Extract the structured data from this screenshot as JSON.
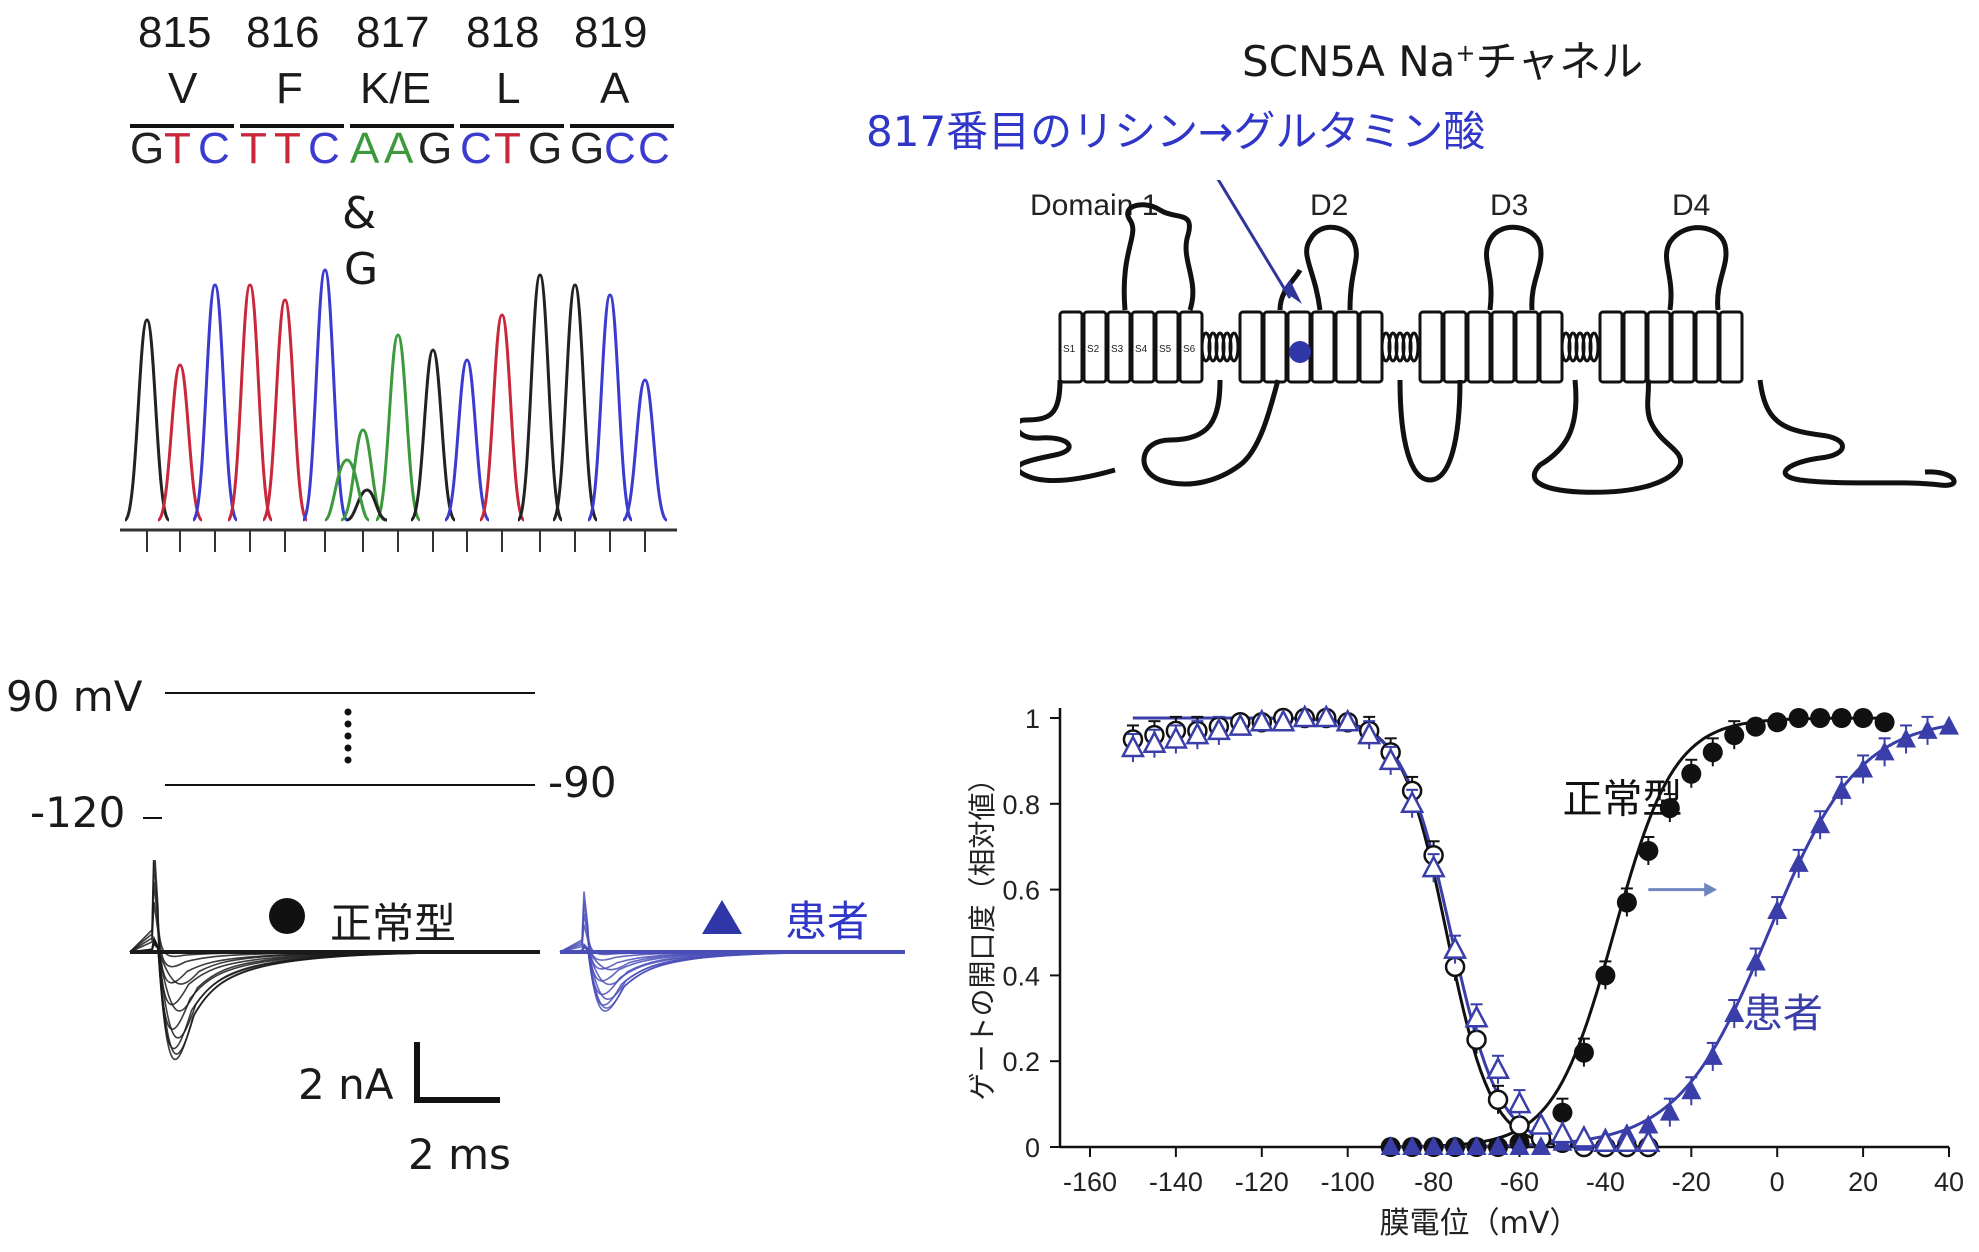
{
  "seq": {
    "positions": [
      "815",
      "816",
      "817",
      "818",
      "819"
    ],
    "amino_acids": [
      "V",
      "F",
      "K/E",
      "L",
      "A"
    ],
    "codons": [
      [
        {
          "b": "G",
          "c": "#222"
        },
        {
          "b": "T",
          "c": "#c8283a"
        },
        {
          "b": "C",
          "c": "#3b3bd0"
        }
      ],
      [
        {
          "b": "T",
          "c": "#c8283a"
        },
        {
          "b": "T",
          "c": "#c8283a"
        },
        {
          "b": "C",
          "c": "#3b3bd0"
        }
      ],
      [
        {
          "b": "A",
          "c": "#3c9a3c"
        },
        {
          "b": "A",
          "c": "#3c9a3c"
        },
        {
          "b": "G",
          "c": "#222"
        }
      ],
      [
        {
          "b": "C",
          "c": "#3b3bd0"
        },
        {
          "b": "T",
          "c": "#c8283a"
        },
        {
          "b": "G",
          "c": "#222"
        }
      ],
      [
        {
          "b": "G",
          "c": "#222"
        },
        {
          "b": "C",
          "c": "#3b3bd0"
        },
        {
          "b": "C",
          "c": "#3b3bd0"
        }
      ]
    ],
    "ampersand": "&",
    "alt_base": "G"
  },
  "channel": {
    "title_main": "SCN5A Na",
    "title_sup": "+",
    "title_rest": "チャネル",
    "mutation": "817番目のリシン→グルタミン酸",
    "domains": [
      "Domain 1",
      "D2",
      "D3",
      "D4"
    ],
    "segments": [
      "S1",
      "S2",
      "S3",
      "S4",
      "S5",
      "S6"
    ]
  },
  "protocol": {
    "label_top": "90 mV",
    "label_hold": "-120",
    "label_step": "-90"
  },
  "traces": {
    "wt_label": "正常型",
    "pt_label": "患者",
    "scale_y": "2 nA",
    "scale_x": "2 ms"
  },
  "chart_data": {
    "type": "scatter",
    "xlabel": "膜電位（mV）",
    "ylabel": "ゲートの開口度（相対値）",
    "xlim": [
      -160,
      40
    ],
    "ylim": [
      0,
      1
    ],
    "xticks": [
      "-160",
      "-140",
      "-120",
      "-100",
      "-80",
      "-60",
      "-40",
      "-20",
      "0",
      "20",
      "40"
    ],
    "yticks": [
      "0",
      "0.2",
      "0.4",
      "0.6",
      "0.8",
      "1"
    ],
    "annotations": {
      "wt": "正常型",
      "pt": "患者"
    },
    "colors": {
      "wt": "#111111",
      "pt": "#3a3ea8"
    },
    "series": [
      {
        "name": "正常型",
        "kind": "activation",
        "x": [
          -90,
          -85,
          -80,
          -75,
          -70,
          -65,
          -60,
          -55,
          -50,
          -45,
          -40,
          -35,
          -30,
          -25,
          -20,
          -15,
          -10,
          -5,
          0,
          5,
          10,
          15,
          20,
          25
        ],
        "y": [
          0.0,
          0.0,
          0.0,
          0.0,
          0.0,
          0.0,
          0.01,
          0.03,
          0.08,
          0.22,
          0.4,
          0.57,
          0.69,
          0.79,
          0.87,
          0.92,
          0.96,
          0.98,
          0.99,
          1.0,
          1.0,
          1.0,
          1.0,
          0.99
        ]
      },
      {
        "name": "正常型",
        "kind": "inactivation",
        "x": [
          -150,
          -145,
          -140,
          -135,
          -130,
          -125,
          -120,
          -115,
          -110,
          -105,
          -100,
          -95,
          -90,
          -85,
          -80,
          -75,
          -70,
          -65,
          -60,
          -55,
          -50,
          -45,
          -40,
          -35,
          -30
        ],
        "y": [
          0.95,
          0.96,
          0.97,
          0.97,
          0.98,
          0.99,
          0.99,
          1.0,
          1.0,
          1.0,
          0.99,
          0.97,
          0.92,
          0.83,
          0.68,
          0.42,
          0.25,
          0.11,
          0.05,
          0.02,
          0.01,
          0.0,
          0.0,
          0.0,
          0.0
        ]
      },
      {
        "name": "患者",
        "kind": "activation",
        "x": [
          -90,
          -85,
          -80,
          -75,
          -70,
          -65,
          -60,
          -55,
          -50,
          -45,
          -40,
          -35,
          -30,
          -25,
          -20,
          -15,
          -10,
          -5,
          0,
          5,
          10,
          15,
          20,
          25,
          30,
          35,
          40
        ],
        "y": [
          0.0,
          0.0,
          0.0,
          0.0,
          0.0,
          0.0,
          0.0,
          0.0,
          0.01,
          0.01,
          0.02,
          0.03,
          0.05,
          0.08,
          0.13,
          0.21,
          0.31,
          0.43,
          0.55,
          0.66,
          0.75,
          0.83,
          0.88,
          0.92,
          0.95,
          0.97,
          0.98
        ]
      },
      {
        "name": "患者",
        "kind": "inactivation",
        "x": [
          -150,
          -145,
          -140,
          -135,
          -130,
          -125,
          -120,
          -115,
          -110,
          -105,
          -100,
          -95,
          -90,
          -85,
          -80,
          -75,
          -70,
          -65,
          -60,
          -55,
          -50,
          -45,
          -40,
          -35,
          -30
        ],
        "y": [
          0.93,
          0.94,
          0.95,
          0.96,
          0.97,
          0.98,
          0.99,
          0.99,
          1.0,
          1.0,
          0.99,
          0.96,
          0.9,
          0.8,
          0.65,
          0.46,
          0.3,
          0.18,
          0.1,
          0.05,
          0.03,
          0.02,
          0.01,
          0.01,
          0.01
        ]
      }
    ]
  }
}
